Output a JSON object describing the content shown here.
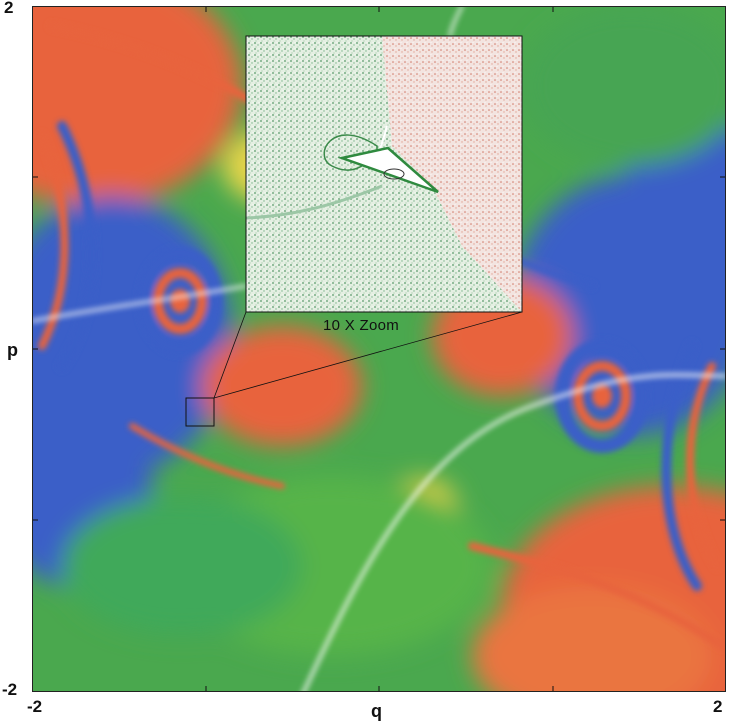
{
  "chart_data": {
    "type": "heatmap",
    "title": "",
    "xlabel": "q",
    "ylabel": "p",
    "xlim": [
      -2,
      2
    ],
    "ylim": [
      -2,
      2
    ],
    "x_tick_labels": [
      "-2",
      "2"
    ],
    "y_tick_labels": [
      "2",
      "-2"
    ],
    "grid": false,
    "colormap": [
      "#3b5fc8",
      "#2e9fd0",
      "#4caf50",
      "#8dc63f",
      "#e9d84a",
      "#e8643c"
    ],
    "inset": {
      "caption": "10 X Zoom",
      "zoom_factor": 10,
      "source_region_center": [
        -0.95,
        -0.35
      ],
      "source_region_size": 0.16
    },
    "features": {
      "bright_manifold": "white curve through phase space",
      "islands": [
        {
          "center": [
            -1.0,
            0.4
          ],
          "description": "resonance island (left)"
        },
        {
          "center": [
            1.0,
            -0.4
          ],
          "description": "resonance island (right)"
        }
      ]
    }
  }
}
